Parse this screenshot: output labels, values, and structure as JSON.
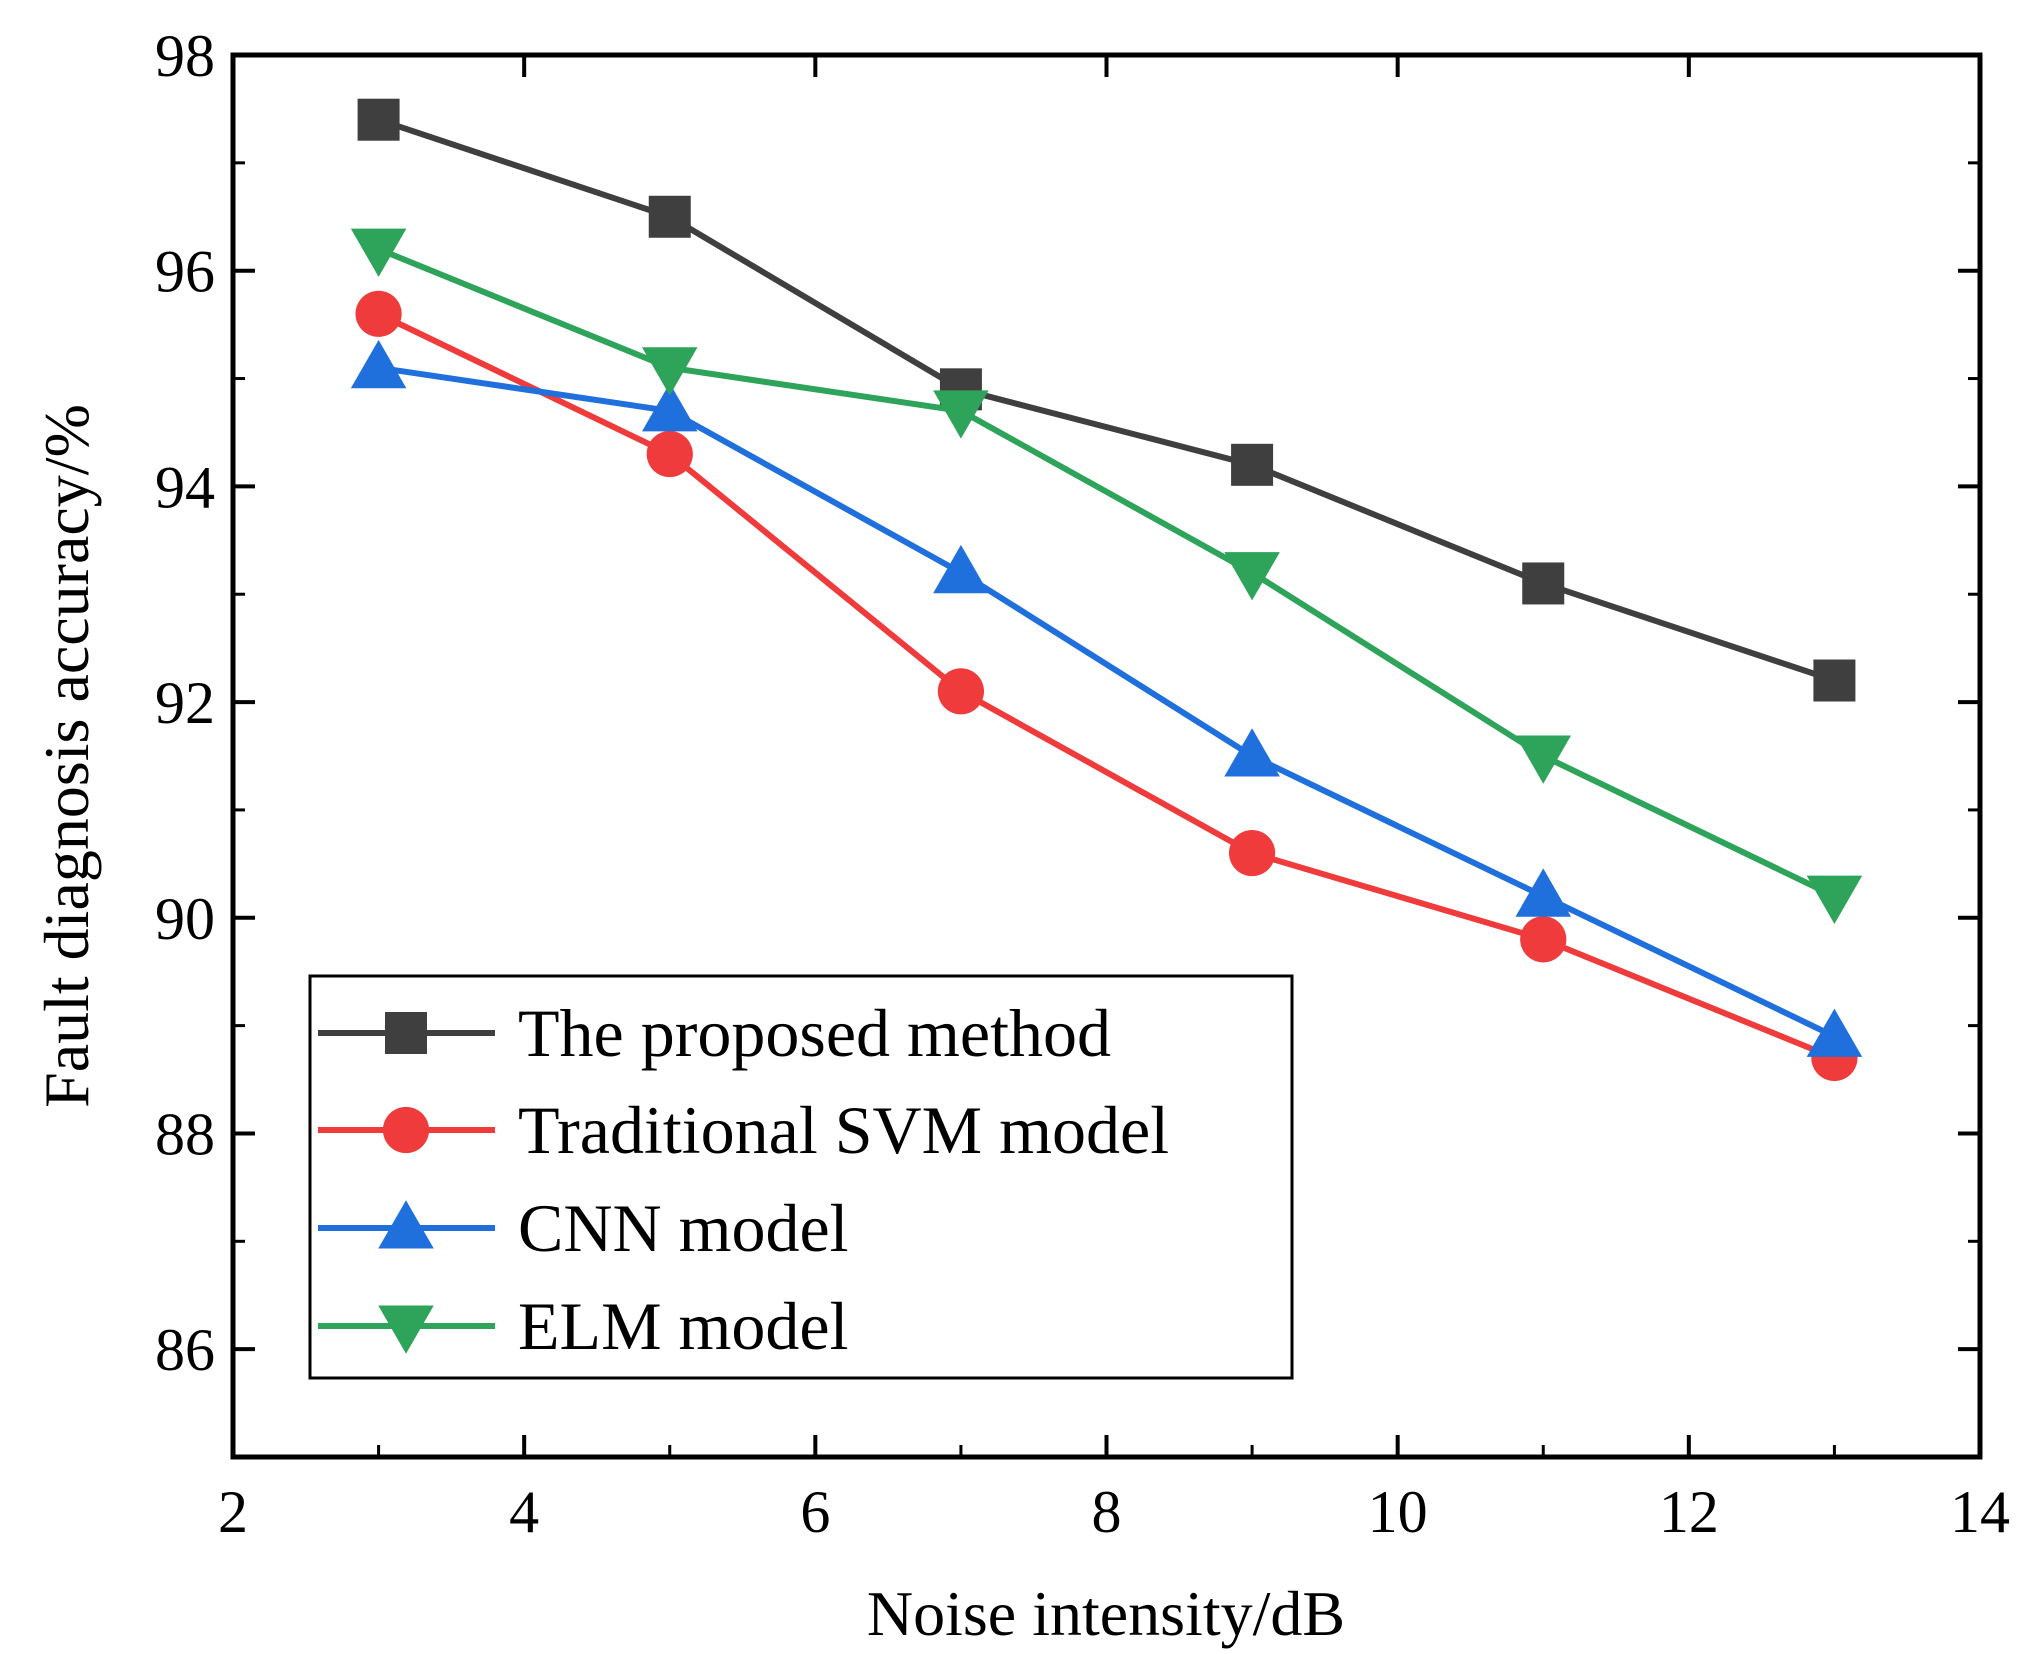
{
  "chart_data": {
    "type": "line",
    "title": "",
    "xlabel": "Noise intensity/dB",
    "ylabel": "Fault diagnosis accuracy/%",
    "xlim": [
      2,
      14
    ],
    "ylim": [
      85,
      98
    ],
    "xticks": [
      2,
      4,
      6,
      8,
      10,
      12,
      14
    ],
    "yticks": [
      86,
      88,
      90,
      92,
      94,
      96,
      98
    ],
    "x": [
      3,
      5,
      7,
      9,
      11,
      13
    ],
    "grid": false,
    "legend_position": "bottom-left",
    "series": [
      {
        "name": "The proposed method",
        "marker": "square",
        "color": "#3f3f3f",
        "values": [
          97.4,
          96.5,
          94.9,
          94.2,
          93.1,
          92.2
        ]
      },
      {
        "name": "Traditional SVM model",
        "marker": "circle",
        "color": "#ef3b3b",
        "values": [
          95.6,
          94.3,
          92.1,
          90.6,
          89.8,
          88.7
        ]
      },
      {
        "name": "CNN model",
        "marker": "triangle-up",
        "color": "#1f6fdc",
        "values": [
          95.1,
          94.7,
          93.2,
          91.5,
          90.2,
          88.9
        ]
      },
      {
        "name": "ELM model",
        "marker": "triangle-down",
        "color": "#2ea35a",
        "values": [
          96.2,
          95.1,
          94.7,
          93.2,
          91.5,
          90.2
        ]
      }
    ]
  }
}
